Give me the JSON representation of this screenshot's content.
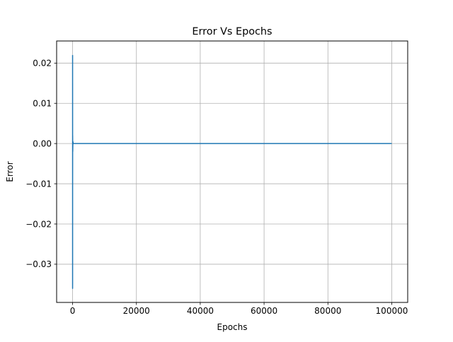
{
  "chart_data": {
    "type": "line",
    "title": "Error Vs Epochs",
    "xlabel": "Epochs",
    "ylabel": "Error",
    "xlim": [
      -5000,
      105000
    ],
    "ylim": [
      -0.0395,
      0.0255
    ],
    "xticks": [
      0,
      20000,
      40000,
      60000,
      80000,
      100000
    ],
    "xtick_labels": [
      "0",
      "20000",
      "40000",
      "60000",
      "80000",
      "100000"
    ],
    "yticks": [
      0.02,
      0.01,
      0.0,
      -0.01,
      -0.02,
      -0.03
    ],
    "ytick_labels": [
      "0.02",
      "0.01",
      "0.00",
      "−0.01",
      "−0.02",
      "−0.03"
    ],
    "grid": true,
    "series": [
      {
        "color": "#1f77b4",
        "x": [
          0,
          1,
          2,
          3,
          4,
          5,
          6,
          7,
          8,
          10,
          20,
          50,
          100,
          200,
          500,
          1000,
          100000
        ],
        "y": [
          0.022,
          -0.036,
          0.021,
          -0.035,
          0.015,
          -0.03,
          0.01,
          -0.02,
          0.005,
          -0.01,
          0.002,
          -0.002,
          0.0005,
          0.0,
          0.0,
          0.0,
          0.0
        ]
      }
    ]
  }
}
